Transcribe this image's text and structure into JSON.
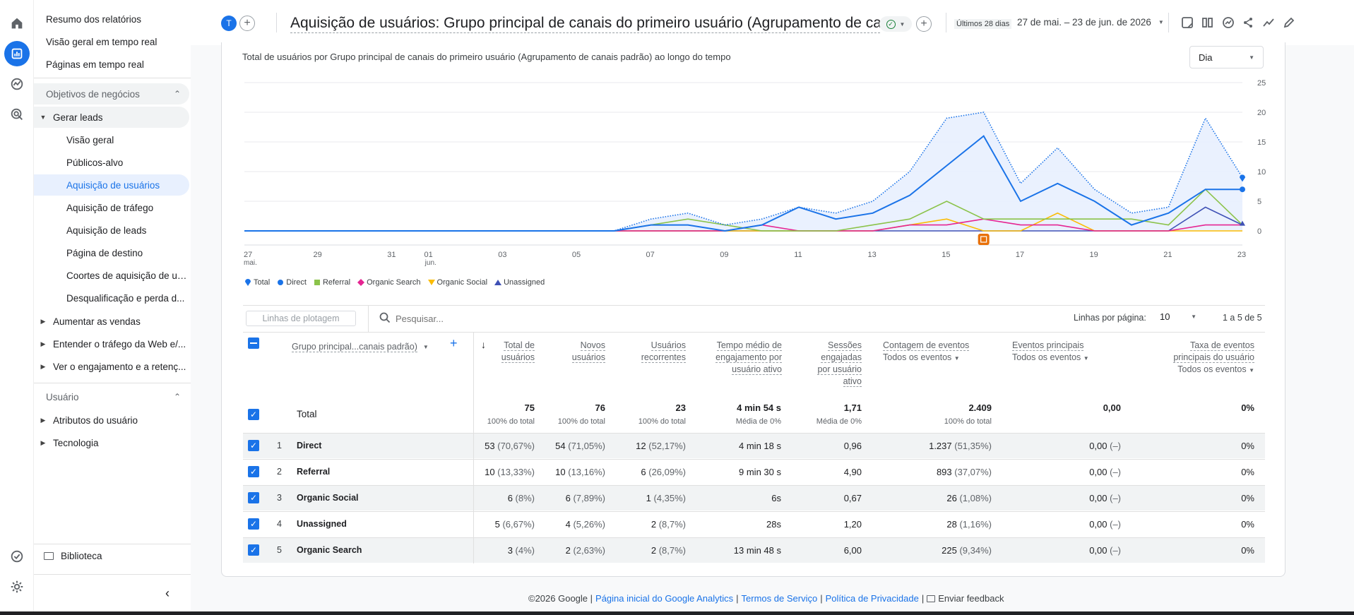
{
  "sidebar": {
    "items": [
      {
        "label": "Resumo dos relatórios"
      },
      {
        "label": "Visão geral em tempo real"
      },
      {
        "label": "Páginas em tempo real"
      }
    ],
    "section_business": "Objetivos de negócios",
    "group_leads": "Gerar leads",
    "leads_children": [
      "Visão geral",
      "Públicos-alvo",
      "Aquisição de usuários",
      "Aquisição de tráfego",
      "Aquisição de leads",
      "Página de destino",
      "Coortes de aquisição de us...",
      "Desqualificação e perda d..."
    ],
    "collapsed_groups": [
      "Aumentar as vendas",
      "Entender o tráfego da Web e/...",
      "Ver o engajamento e a retenç..."
    ],
    "section_user": "Usuário",
    "user_groups": [
      "Atributos do usuário",
      "Tecnologia"
    ],
    "library": "Biblioteca"
  },
  "header": {
    "avatar_letter": "T",
    "title": "Aquisição de usuários: Grupo principal de canais do primeiro usuário (Agrupamento de can...",
    "date_prefix": "Últimos 28 dias",
    "date_range": "27 de mai. – 23 de jun. de 2026"
  },
  "chart_section": {
    "title": "Total de usuários por Grupo principal de canais do primeiro usuário (Agrupamento de canais padrão) ao longo do tempo",
    "granularity": "Dia"
  },
  "chart_data": {
    "type": "line",
    "x": [
      "27 mai.",
      "28",
      "29",
      "30",
      "31",
      "01 jun.",
      "02",
      "03",
      "04",
      "05",
      "06",
      "07",
      "08",
      "09",
      "10",
      "11",
      "12",
      "13",
      "14",
      "15",
      "16",
      "17",
      "18",
      "19",
      "20",
      "21",
      "22",
      "23"
    ],
    "x_tick_labels": [
      "27",
      "29",
      "31",
      "01",
      "03",
      "05",
      "07",
      "09",
      "11",
      "13",
      "15",
      "17",
      "19",
      "21",
      "23"
    ],
    "x_tick_sublabels": {
      "27": "mai.",
      "01": "jun."
    },
    "ylim": [
      0,
      25
    ],
    "y_ticks": [
      0,
      5,
      10,
      15,
      20,
      25
    ],
    "grid": true,
    "legend_position": "bottom-left",
    "series": [
      {
        "name": "Total",
        "color": "#1a73e8",
        "style": "dotted-area",
        "values": [
          0,
          0,
          0,
          0,
          0,
          0,
          0,
          0,
          0,
          0,
          0,
          2,
          3,
          1,
          2,
          4,
          3,
          5,
          10,
          19,
          20,
          8,
          14,
          7,
          3,
          4,
          19,
          9
        ]
      },
      {
        "name": "Direct",
        "color": "#1a73e8",
        "style": "solid",
        "values": [
          0,
          0,
          0,
          0,
          0,
          0,
          0,
          0,
          0,
          0,
          0,
          1,
          1,
          0,
          1,
          4,
          2,
          3,
          6,
          11,
          16,
          5,
          8,
          5,
          1,
          3,
          7,
          7
        ]
      },
      {
        "name": "Referral",
        "color": "#8bc34a",
        "style": "solid",
        "values": [
          0,
          0,
          0,
          0,
          0,
          0,
          0,
          0,
          0,
          0,
          0,
          1,
          2,
          1,
          0,
          0,
          0,
          1,
          2,
          5,
          2,
          2,
          2,
          2,
          2,
          1,
          7,
          1
        ]
      },
      {
        "name": "Organic Search",
        "color": "#e52592",
        "style": "solid",
        "values": [
          0,
          0,
          0,
          0,
          0,
          0,
          0,
          0,
          0,
          0,
          0,
          0,
          0,
          0,
          1,
          0,
          0,
          0,
          1,
          1,
          2,
          1,
          1,
          0,
          0,
          0,
          1,
          1
        ]
      },
      {
        "name": "Organic Social",
        "color": "#fbbc04",
        "style": "solid",
        "values": [
          0,
          0,
          0,
          0,
          0,
          0,
          0,
          0,
          0,
          0,
          0,
          0,
          0,
          0,
          0,
          0,
          0,
          0,
          1,
          2,
          0,
          0,
          3,
          0,
          0,
          0,
          0,
          0
        ]
      },
      {
        "name": "Unassigned",
        "color": "#3f51b5",
        "style": "solid",
        "values": [
          0,
          0,
          0,
          0,
          0,
          0,
          0,
          0,
          0,
          0,
          0,
          0,
          0,
          0,
          0,
          0,
          0,
          0,
          0,
          0,
          0,
          0,
          0,
          0,
          0,
          0,
          4,
          1
        ]
      }
    ]
  },
  "table_toolbar": {
    "plot_rows": "Linhas de plotagem",
    "search_placeholder": "Pesquisar...",
    "rows_per_page_label": "Linhas por página:",
    "rows_per_page": "10",
    "pagination": "1 a 5 de 5"
  },
  "table": {
    "dimension": "Grupo principal...canais padrão)",
    "headers": [
      {
        "label": "Total de usuários",
        "l1": "Total de",
        "l2": "usuários"
      },
      {
        "l1": "Novos",
        "l2": "usuários"
      },
      {
        "l1": "Usuários",
        "l2": "recorrentes"
      },
      {
        "l1": "Tempo médio de",
        "l2": "engajamento por",
        "l3": "usuário ativo"
      },
      {
        "l1": "Sessões",
        "l2": "engajadas",
        "l3": "por usuário",
        "l4": "ativo"
      },
      {
        "l1": "Contagem de eventos",
        "sub": "Todos os eventos"
      },
      {
        "l1": "Eventos principais",
        "sub": "Todos os eventos"
      },
      {
        "l1": "Taxa de eventos",
        "l2": "principais do usuário",
        "sub": "Todos os eventos"
      }
    ],
    "total_label": "Total",
    "totals": [
      {
        "v": "75",
        "s": "100% do total"
      },
      {
        "v": "76",
        "s": "100% do total"
      },
      {
        "v": "23",
        "s": "100% do total"
      },
      {
        "v": "4 min 54 s",
        "s": "Média de 0%"
      },
      {
        "v": "1,71",
        "s": "Média de 0%"
      },
      {
        "v": "2.409",
        "s": "100% do total"
      },
      {
        "v": "0,00",
        "s": ""
      },
      {
        "v": "0%",
        "s": ""
      }
    ],
    "rows": [
      {
        "n": "1",
        "name": "Direct",
        "c": [
          [
            "53 ",
            "(70,67%)"
          ],
          [
            "54 ",
            "(71,05%)"
          ],
          [
            "12 ",
            "(52,17%)"
          ],
          [
            "4 min 18 s",
            ""
          ],
          [
            "0,96",
            ""
          ],
          [
            "1.237 ",
            "(51,35%)"
          ],
          [
            "0,00 ",
            "(–)"
          ],
          [
            "0%",
            ""
          ]
        ]
      },
      {
        "n": "2",
        "name": "Referral",
        "c": [
          [
            "10 ",
            "(13,33%)"
          ],
          [
            "10 ",
            "(13,16%)"
          ],
          [
            "6 ",
            "(26,09%)"
          ],
          [
            "9 min 30 s",
            ""
          ],
          [
            "4,90",
            ""
          ],
          [
            "893 ",
            "(37,07%)"
          ],
          [
            "0,00 ",
            "(–)"
          ],
          [
            "0%",
            ""
          ]
        ]
      },
      {
        "n": "3",
        "name": "Organic Social",
        "c": [
          [
            "6 ",
            "(8%)"
          ],
          [
            "6 ",
            "(7,89%)"
          ],
          [
            "1 ",
            "(4,35%)"
          ],
          [
            "6s",
            ""
          ],
          [
            "0,67",
            ""
          ],
          [
            "26 ",
            "(1,08%)"
          ],
          [
            "0,00 ",
            "(–)"
          ],
          [
            "0%",
            ""
          ]
        ]
      },
      {
        "n": "4",
        "name": "Unassigned",
        "c": [
          [
            "5 ",
            "(6,67%)"
          ],
          [
            "4 ",
            "(5,26%)"
          ],
          [
            "2 ",
            "(8,7%)"
          ],
          [
            "28s",
            ""
          ],
          [
            "1,20",
            ""
          ],
          [
            "28 ",
            "(1,16%)"
          ],
          [
            "0,00 ",
            "(–)"
          ],
          [
            "0%",
            ""
          ]
        ]
      },
      {
        "n": "5",
        "name": "Organic Search",
        "c": [
          [
            "3 ",
            "(4%)"
          ],
          [
            "2 ",
            "(2,63%)"
          ],
          [
            "2 ",
            "(8,7%)"
          ],
          [
            "13 min 48 s",
            ""
          ],
          [
            "6,00",
            ""
          ],
          [
            "225 ",
            "(9,34%)"
          ],
          [
            "0,00 ",
            "(–)"
          ],
          [
            "0%",
            ""
          ]
        ]
      }
    ]
  },
  "footer": {
    "copyright": "©2026 Google |",
    "link_home": "Página inicial do Google Analytics",
    "sep1": "|",
    "link_terms": "Termos de Serviço",
    "sep2": "|",
    "link_privacy": "Política de Privacidade",
    "sep3": "|",
    "feedback": "Enviar feedback"
  }
}
